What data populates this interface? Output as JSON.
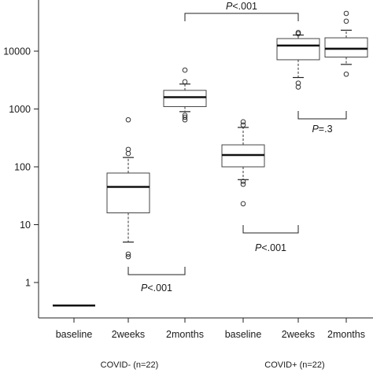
{
  "chart_data": {
    "type": "box",
    "scale": "log10",
    "ylim": [
      0.3,
      30000
    ],
    "y_ticks": [
      {
        "value": 1,
        "label": "1"
      },
      {
        "value": 10,
        "label": "10"
      },
      {
        "value": 100,
        "label": "100"
      },
      {
        "value": 1000,
        "label": "1000"
      },
      {
        "value": 10000,
        "label": "10000"
      }
    ],
    "categories": [
      "baseline",
      "2weeks",
      "2months",
      "baseline",
      "2weeks",
      "2months"
    ],
    "groups": [
      {
        "label": "COVID- (n=22)",
        "first": 0,
        "last": 2
      },
      {
        "label": "COVID+ (n=22)",
        "first": 3,
        "last": 5
      }
    ],
    "boxes": [
      {
        "median": 0.4,
        "q1": 0.4,
        "q3": 0.4,
        "whisker_low": 0.4,
        "whisker_high": 0.4,
        "outliers": [],
        "flat": true
      },
      {
        "median": 45,
        "q1": 16,
        "q3": 78,
        "whisker_low": 5,
        "whisker_high": 145,
        "outliers": [
          2.8,
          3.1,
          170,
          200,
          650
        ]
      },
      {
        "median": 1600,
        "q1": 1100,
        "q3": 2100,
        "whisker_low": 900,
        "whisker_high": 2700,
        "outliers": [
          650,
          720,
          780,
          2950,
          4700
        ]
      },
      {
        "median": 160,
        "q1": 100,
        "q3": 240,
        "whisker_low": 60,
        "whisker_high": 480,
        "outliers": [
          23,
          50,
          56,
          530,
          600
        ]
      },
      {
        "median": 12500,
        "q1": 7100,
        "q3": 16500,
        "whisker_low": 3500,
        "whisker_high": 19000,
        "outliers": [
          2400,
          2800,
          20000,
          21000
        ]
      },
      {
        "median": 11000,
        "q1": 7900,
        "q3": 17000,
        "whisker_low": 5900,
        "whisker_high": 23000,
        "outliers": [
          4000,
          33000,
          45000
        ]
      }
    ],
    "annotations": [
      {
        "prefix": "P",
        "text": "<.001",
        "from": 1,
        "to": 2
      },
      {
        "prefix": "P",
        "text": "<.001",
        "from": 2,
        "to": 4
      },
      {
        "prefix": "P",
        "text": "<.001",
        "from": 3,
        "to": 4
      },
      {
        "prefix": "P",
        "text": "=.3",
        "from": 4,
        "to": 5
      }
    ]
  }
}
